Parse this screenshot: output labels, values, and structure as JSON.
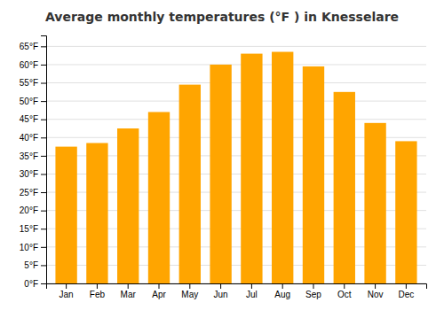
{
  "chart_data": {
    "type": "bar",
    "title": "Average monthly temperatures (°F ) in Knesselare",
    "categories": [
      "Jan",
      "Feb",
      "Mar",
      "Apr",
      "May",
      "Jun",
      "Jul",
      "Aug",
      "Sep",
      "Oct",
      "Nov",
      "Dec"
    ],
    "values": [
      37.5,
      38.5,
      42.5,
      47.0,
      54.5,
      60.0,
      63.0,
      63.5,
      59.5,
      52.5,
      44.0,
      39.0
    ],
    "color": "#FFA500",
    "ylim": [
      0,
      68
    ],
    "yticks": [
      {
        "value": 0,
        "label": "0°F"
      },
      {
        "value": 5,
        "label": "5°F"
      },
      {
        "value": 10,
        "label": "10°F"
      },
      {
        "value": 15,
        "label": "15°F"
      },
      {
        "value": 20,
        "label": "20°F"
      },
      {
        "value": 25,
        "label": "25°F"
      },
      {
        "value": 30,
        "label": "30°F"
      },
      {
        "value": 35,
        "label": "35°F"
      },
      {
        "value": 40,
        "label": "40°F"
      },
      {
        "value": 45,
        "label": "45°F"
      },
      {
        "value": 50,
        "label": "50°F"
      },
      {
        "value": 55,
        "label": "55°F"
      },
      {
        "value": 60,
        "label": "60°F"
      },
      {
        "value": 65,
        "label": "65°F"
      }
    ],
    "grid": true
  }
}
